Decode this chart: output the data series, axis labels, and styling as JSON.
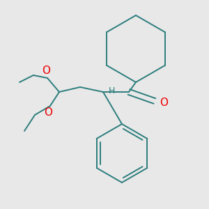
{
  "bg_color": "#e8e8e8",
  "bond_color": "#2d7d7d",
  "oxygen_color": "#ee0000",
  "lw": 1.4,
  "figsize": [
    3.0,
    3.0
  ],
  "dpi": 100,
  "xlim": [
    0,
    300
  ],
  "ylim": [
    0,
    300
  ]
}
